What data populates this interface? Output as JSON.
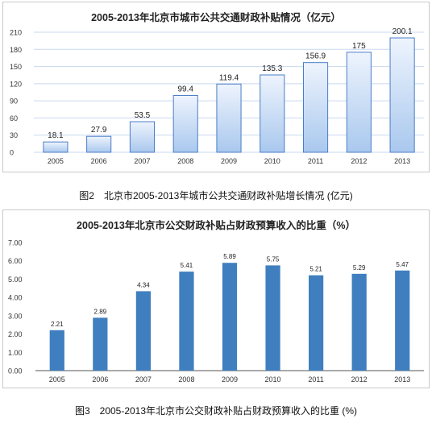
{
  "figures": [
    {
      "caption": "图2　北京市2005-2013年城市公共交通财政补贴增长情况 (亿元)",
      "chart_data": {
        "type": "bar",
        "title": "2005-2013年北京市城市公共交通财政补贴情况（亿元）",
        "categories": [
          "2005",
          "2006",
          "2007",
          "2008",
          "2009",
          "2010",
          "2011",
          "2012",
          "2013"
        ],
        "values": [
          18.1,
          27.9,
          53.5,
          99.4,
          119.4,
          135.3,
          156.9,
          175,
          200.1
        ],
        "value_labels": [
          "18.1",
          "27.9",
          "53.5",
          "99.4",
          "119.4",
          "135.3",
          "156.9",
          "175",
          "200.1"
        ],
        "yticks": [
          "0",
          "30",
          "60",
          "90",
          "120",
          "150",
          "180",
          "210"
        ],
        "ylim": [
          0,
          210
        ],
        "xlabel": "",
        "ylabel": "",
        "grid": true,
        "bar_style": "gradient",
        "colors": {
          "bar_top": "#eef4fd",
          "bar_bottom": "#a9c8ee",
          "bar_edge": "#4a7dc8",
          "grid": "#c9d8ef"
        }
      }
    },
    {
      "caption": "图3　2005-2013年北京市公交财政补贴占财政预算收入的比重 (%)",
      "chart_data": {
        "type": "bar",
        "title": "2005-2013年北京市公交财政补贴占财政预算收入的比重（%）",
        "categories": [
          "2005",
          "2006",
          "2007",
          "2008",
          "2009",
          "2010",
          "2011",
          "2012",
          "2013"
        ],
        "values": [
          2.21,
          2.89,
          4.34,
          5.41,
          5.89,
          5.75,
          5.21,
          5.29,
          5.47
        ],
        "value_labels": [
          "2.21",
          "2.89",
          "4.34",
          "5.41",
          "5.89",
          "5.75",
          "5.21",
          "5.29",
          "5.47"
        ],
        "yticks": [
          "0.00",
          "1.00",
          "2.00",
          "3.00",
          "4.00",
          "5.00",
          "6.00",
          "7.00"
        ],
        "ylim": [
          0,
          7
        ],
        "xlabel": "",
        "ylabel": "",
        "grid": false,
        "bar_style": "solid",
        "colors": {
          "bar": "#3f7fbf",
          "axis": "#555555"
        }
      }
    }
  ]
}
